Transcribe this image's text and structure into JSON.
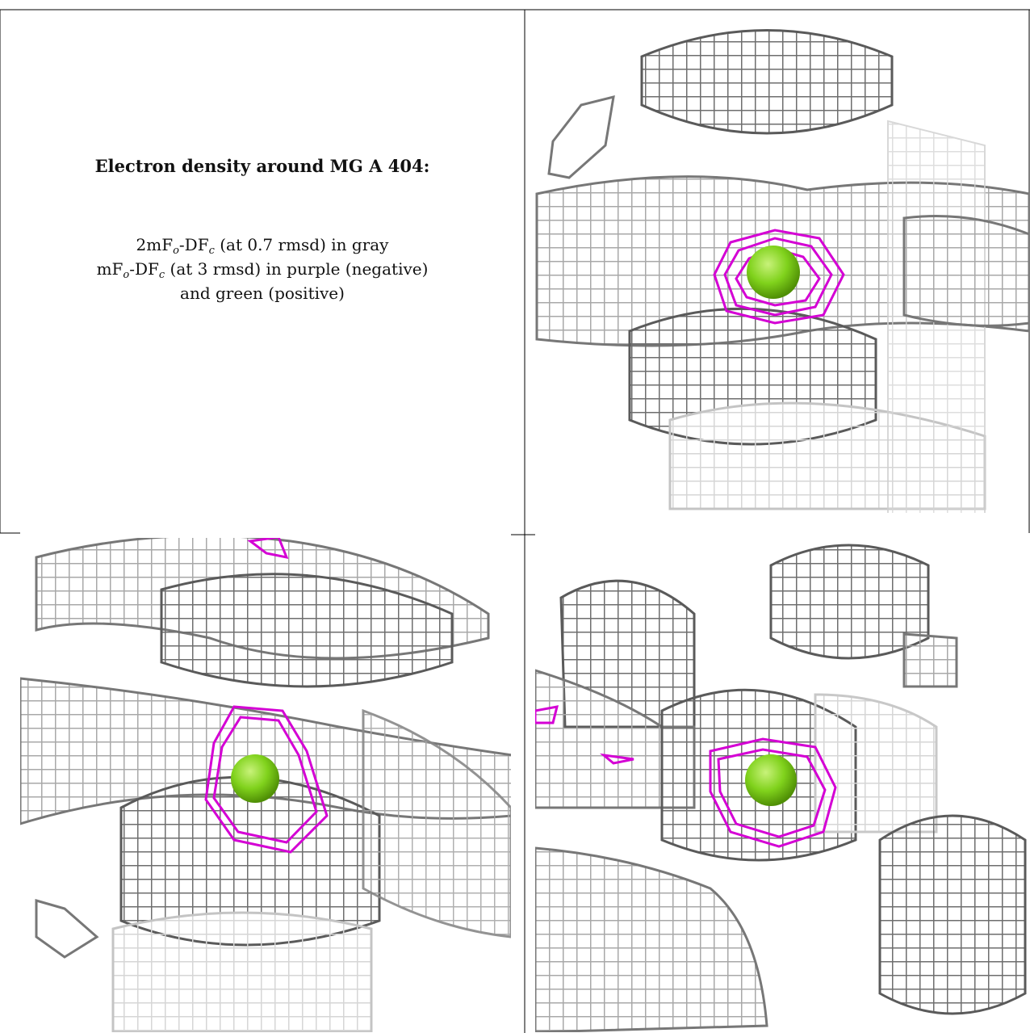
{
  "caption": {
    "title": "Electron density around MG A 404:",
    "gray_line_pre": "2mF",
    "gray_line_sub1": "o",
    "gray_line_mid": "-DF",
    "gray_line_sub2": "c",
    "gray_line_post": " (at 0.7 rmsd) in gray",
    "diff_line_pre": "mF",
    "diff_line_sub1": "o",
    "diff_line_mid": "-DF",
    "diff_line_sub2": "c",
    "diff_line_post": " (at 3 rmsd) in purple (negative)",
    "diff_line2": "and green (positive)"
  },
  "colors": {
    "mesh_gray": "#9a9a9a",
    "mesh_dark": "#5a5a5a",
    "mesh_light": "#d0d0d0",
    "negative_purple": "#d400d4",
    "positive_green": "#7fd21a",
    "border": "#000000"
  },
  "panels": [
    {
      "name": "view-top-right",
      "description_icon": "density-mesh-icon"
    },
    {
      "name": "view-bottom-left",
      "description_icon": "density-mesh-icon"
    },
    {
      "name": "view-bottom-right",
      "description_icon": "density-mesh-icon"
    }
  ]
}
